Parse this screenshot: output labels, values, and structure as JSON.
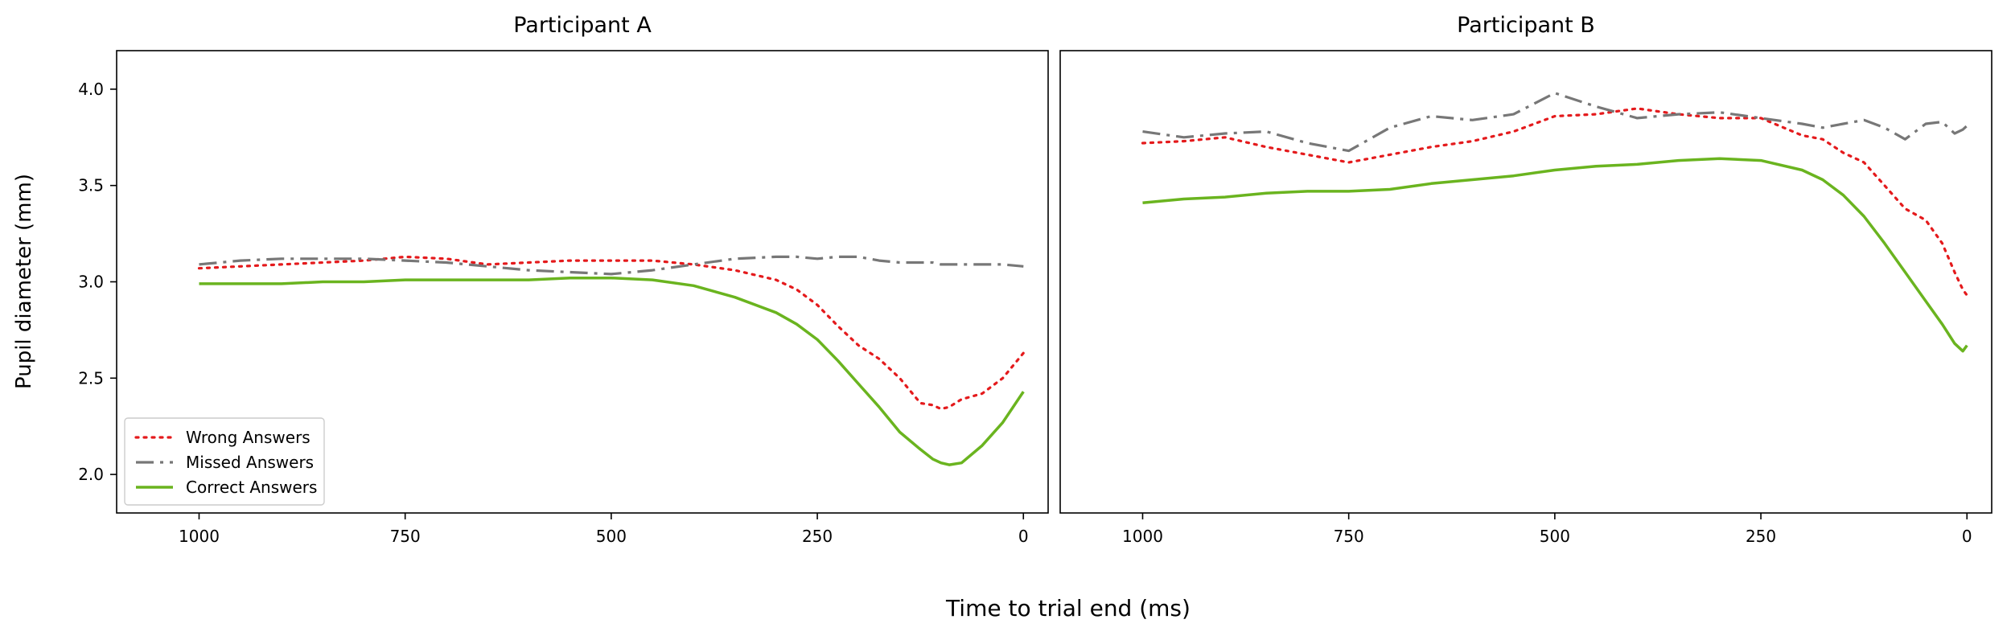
{
  "figure": {
    "ylabel": "Pupil diameter (mm)",
    "xlabel": "Time to trial end (ms)"
  },
  "chart_data": [
    {
      "type": "line",
      "title": "Participant A",
      "xlabel": "Time to trial end (ms)",
      "ylabel": "Pupil diameter (mm)",
      "xlim": [
        1100,
        -30
      ],
      "ylim": [
        1.8,
        4.2
      ],
      "x_ticks": [
        1000,
        750,
        500,
        250,
        0
      ],
      "y_ticks": [
        2.0,
        2.5,
        3.0,
        3.5,
        4.0
      ],
      "grid": false,
      "legend": "lower-left",
      "x": [
        1000,
        950,
        900,
        850,
        800,
        750,
        700,
        650,
        600,
        550,
        500,
        450,
        400,
        350,
        300,
        275,
        250,
        225,
        200,
        175,
        150,
        125,
        110,
        100,
        90,
        75,
        50,
        25,
        0
      ],
      "series": [
        {
          "name": "Wrong Answers",
          "color": "#e41a1c",
          "style": "dotted",
          "values": [
            3.07,
            3.08,
            3.09,
            3.1,
            3.11,
            3.13,
            3.12,
            3.09,
            3.1,
            3.11,
            3.11,
            3.11,
            3.09,
            3.06,
            3.01,
            2.96,
            2.88,
            2.77,
            2.67,
            2.6,
            2.5,
            2.37,
            2.36,
            2.34,
            2.35,
            2.39,
            2.42,
            2.5,
            2.63
          ]
        },
        {
          "name": "Missed Answers",
          "color": "#777777",
          "style": "dashdot",
          "values": [
            3.09,
            3.11,
            3.12,
            3.12,
            3.12,
            3.11,
            3.1,
            3.08,
            3.06,
            3.05,
            3.04,
            3.06,
            3.09,
            3.12,
            3.13,
            3.13,
            3.12,
            3.13,
            3.13,
            3.11,
            3.1,
            3.1,
            3.1,
            3.09,
            3.09,
            3.09,
            3.09,
            3.09,
            3.08
          ]
        },
        {
          "name": "Correct Answers",
          "color": "#6ab41f",
          "style": "solid",
          "values": [
            2.99,
            2.99,
            2.99,
            3.0,
            3.0,
            3.01,
            3.01,
            3.01,
            3.01,
            3.02,
            3.02,
            3.01,
            2.98,
            2.92,
            2.84,
            2.78,
            2.7,
            2.59,
            2.47,
            2.35,
            2.22,
            2.13,
            2.08,
            2.06,
            2.05,
            2.06,
            2.15,
            2.27,
            2.43
          ]
        }
      ]
    },
    {
      "type": "line",
      "title": "Participant B",
      "xlabel": "Time to trial end (ms)",
      "ylabel": "Pupil diameter (mm)",
      "xlim": [
        1100,
        -30
      ],
      "ylim": [
        1.8,
        4.2
      ],
      "x_ticks": [
        1000,
        750,
        500,
        250,
        0
      ],
      "y_ticks": [],
      "grid": false,
      "legend": "",
      "x": [
        1000,
        950,
        900,
        850,
        800,
        750,
        700,
        650,
        600,
        550,
        500,
        450,
        400,
        350,
        300,
        250,
        200,
        175,
        150,
        125,
        100,
        75,
        50,
        30,
        15,
        5,
        0
      ],
      "series": [
        {
          "name": "Wrong Answers",
          "color": "#e41a1c",
          "style": "dotted",
          "values": [
            3.72,
            3.73,
            3.75,
            3.7,
            3.66,
            3.62,
            3.66,
            3.7,
            3.73,
            3.78,
            3.86,
            3.87,
            3.9,
            3.87,
            3.85,
            3.85,
            3.76,
            3.74,
            3.67,
            3.62,
            3.5,
            3.38,
            3.32,
            3.2,
            3.05,
            2.96,
            2.93
          ]
        },
        {
          "name": "Missed Answers",
          "color": "#777777",
          "style": "dashdot",
          "values": [
            3.78,
            3.75,
            3.77,
            3.78,
            3.72,
            3.68,
            3.8,
            3.86,
            3.84,
            3.87,
            3.98,
            3.91,
            3.85,
            3.87,
            3.88,
            3.85,
            3.82,
            3.8,
            3.82,
            3.84,
            3.8,
            3.74,
            3.82,
            3.83,
            3.77,
            3.79,
            3.81
          ]
        },
        {
          "name": "Correct Answers",
          "color": "#6ab41f",
          "style": "solid",
          "values": [
            3.41,
            3.43,
            3.44,
            3.46,
            3.47,
            3.47,
            3.48,
            3.51,
            3.53,
            3.55,
            3.58,
            3.6,
            3.61,
            3.63,
            3.64,
            3.63,
            3.58,
            3.53,
            3.45,
            3.34,
            3.2,
            3.05,
            2.9,
            2.78,
            2.68,
            2.64,
            2.67
          ]
        }
      ]
    }
  ]
}
